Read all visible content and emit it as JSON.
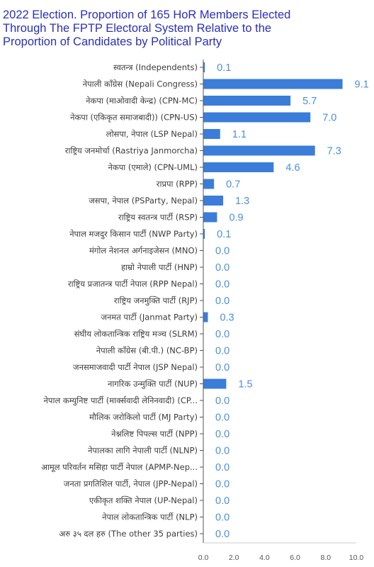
{
  "title_lines": [
    "2022 Election. Proportion of 165 HoR Members Elected",
    "Through The FPTP Electoral System Relative to the",
    "Proportion of Candidates by Political Party"
  ],
  "colors": {
    "title": "#2a2fb8",
    "bar": "#3b7dd8",
    "value_label": "#4a90d9",
    "axis": "#555555"
  },
  "chart_data": {
    "type": "bar",
    "orientation": "horizontal",
    "title": "2022 Election. Proportion of 165 HoR Members Elected Through The FPTP Electoral System Relative to the Proportion of Candidates by Political Party",
    "xlim": [
      0,
      10
    ],
    "xticks": [
      "0.0",
      "2.0",
      "4.0",
      "6.0",
      "8.0",
      "10.0"
    ],
    "grid": false,
    "categories": [
      "स्वतन्त्र (Independents)",
      "नेपाली काँग्रेस (Nepali Congress)",
      "नेकपा (माओवादी केन्द्र) (CPN-MC)",
      "नेकपा (एकिकृत समाजबादी)) (CPN-US)",
      "लोसपा, नेपाल (LSP Nepal)",
      "राष्ट्रिय जनमोर्चा (Rastriya Janmorcha)",
      "नेकपा (एमाले) (CPN-UML)",
      "राप्रपा (RPP)",
      "जसपा, नेपाल (PSParty, Nepal)",
      "राष्ट्रिय स्वतन्त्र पार्टी (RSP)",
      "नेपाल मजदुर किसान पार्टी (NWP Party)",
      "मंगोल नेशनल अर्गनाइजेसन (MNO)",
      "हाम्रो नेपाली पार्टी (HNP)",
      "राष्ट्रिय प्रजातन्त्र पार्टी नेपाल (RPP Nepal)",
      "राष्ट्रिय जनमुक्ति पार्टी (RJP)",
      "जनमत पार्टी (Janmat Party)",
      "संघीय लोकतान्त्रिक राष्ट्रिय मञ्च (SLRM)",
      "नेपाली काँग्रेस (बी.पी.) (NC-BP)",
      "जनसमाजवादी पार्टी नेपाल (JSP Nepal)",
      "नागरिक उन्मुक्ति पार्टी (NUP)",
      "नेपाल कम्युनिष्ट पार्टी (मार्क्सवादी लेनिनवादी) (CP...",
      "मौलिक जरोकिलो पार्टी (MJ Party)",
      "नेश्नलिष्ट पिपल्स पार्टी (NPP)",
      "नेपालका लागि नेपाली पार्टी (NLNP)",
      "आमूल परिवर्तन मसिहा पार्टी नेपाल (APMP-Nep...",
      "जनता प्रगतिशिल पार्टी, नेपाल (JPP-Nepal)",
      "एकीकृत शक्ति नेपाल (UP-Nepal)",
      "नेपाल लोकतान्त्रिक पार्टी (NLP)",
      "अरु ३५ दल हरु (The other 35 parties)"
    ],
    "values": [
      0.1,
      9.1,
      5.7,
      7.0,
      1.1,
      7.3,
      4.6,
      0.7,
      1.3,
      0.9,
      0.1,
      0.0,
      0.0,
      0.0,
      0.0,
      0.3,
      0.0,
      0.0,
      0.0,
      1.5,
      0.0,
      0.0,
      0.0,
      0.0,
      0.0,
      0.0,
      0.0,
      0.0,
      0.0
    ],
    "value_labels": [
      "0.1",
      "9.1",
      "5.7",
      "7.0",
      "1.1",
      "7.3",
      "4.6",
      "0.7",
      "1.3",
      "0.9",
      "0.1",
      "0.0",
      "0.0",
      "0.0",
      "0.0",
      "0.3",
      "0.0",
      "0.0",
      "0.0",
      "1.5",
      "0.0",
      "0.0",
      "0.0",
      "0.0",
      "0.0",
      "0.0",
      "0.0",
      "0.0",
      "0.0"
    ]
  }
}
